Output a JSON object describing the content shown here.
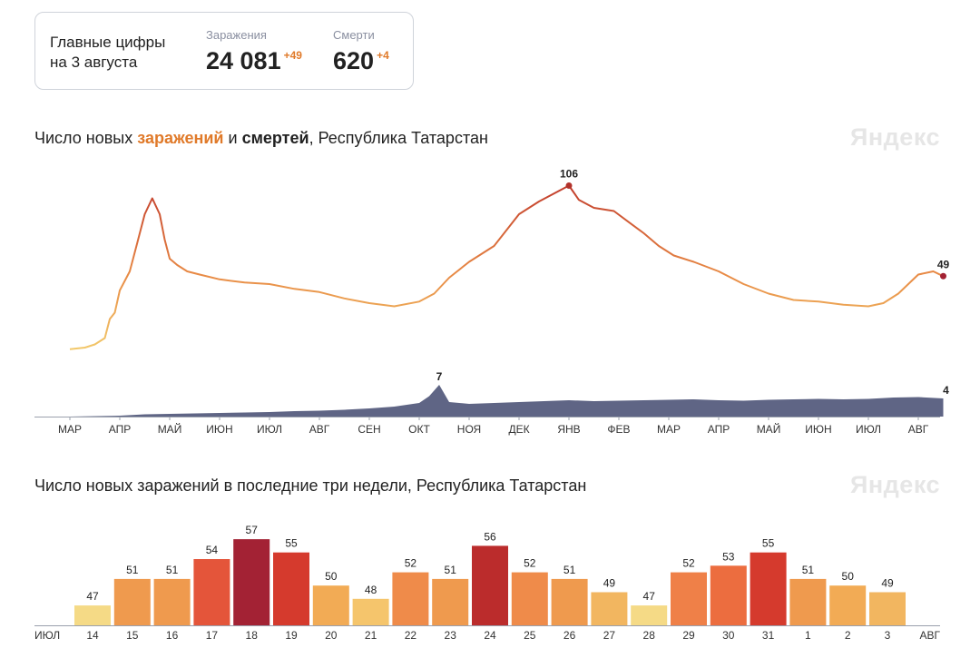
{
  "summary": {
    "heading": "Главные цифры на 3 августа",
    "cases_label": "Заражения",
    "cases_value": "24 081",
    "cases_delta": "+49",
    "deaths_label": "Смерти",
    "deaths_value": "620",
    "deaths_delta": "+4"
  },
  "chart1_title": {
    "prefix": "Число новых ",
    "infections": "заражений",
    "mid": " и ",
    "deaths": "смертей",
    "suffix": ", Республика Татарстан"
  },
  "chart2_title": "Число новых заражений в последние три недели, Республика Татарстан",
  "watermark": "Яндекс",
  "colors": {
    "accent": "#e07a2a",
    "deaths_area": "#5f6585",
    "line_low": "#f2c86a",
    "line_high": "#c0392b"
  },
  "chart_data": [
    {
      "type": "line",
      "title": "Число новых заражений и смертей, Республика Татарстан",
      "x_ticks": [
        "МАР",
        "АПР",
        "МАЙ",
        "ИЮН",
        "ИЮЛ",
        "АВГ",
        "СЕН",
        "ОКТ",
        "НОЯ",
        "ДЕК",
        "ЯНВ",
        "ФЕВ",
        "МАР",
        "АПР",
        "МАЙ",
        "ИЮН",
        "ИЮЛ",
        "АВГ"
      ],
      "series": [
        {
          "name": "заражений",
          "peak_label": "106",
          "last_label": "49",
          "points": [
            [
              0,
              3
            ],
            [
              0.3,
              4
            ],
            [
              0.5,
              6
            ],
            [
              0.7,
              10
            ],
            [
              0.8,
              22
            ],
            [
              0.9,
              26
            ],
            [
              1.0,
              40
            ],
            [
              1.2,
              52
            ],
            [
              1.35,
              70
            ],
            [
              1.5,
              88
            ],
            [
              1.65,
              98
            ],
            [
              1.8,
              88
            ],
            [
              1.9,
              72
            ],
            [
              2.0,
              60
            ],
            [
              2.15,
              56
            ],
            [
              2.35,
              52
            ],
            [
              2.6,
              50
            ],
            [
              3.0,
              47
            ],
            [
              3.5,
              45
            ],
            [
              4.0,
              44
            ],
            [
              4.5,
              41
            ],
            [
              5.0,
              39
            ],
            [
              5.5,
              35
            ],
            [
              6.0,
              32
            ],
            [
              6.5,
              30
            ],
            [
              7.0,
              33
            ],
            [
              7.3,
              38
            ],
            [
              7.6,
              48
            ],
            [
              8.0,
              58
            ],
            [
              8.5,
              68
            ],
            [
              8.8,
              80
            ],
            [
              9.0,
              88
            ],
            [
              9.4,
              96
            ],
            [
              9.7,
              101
            ],
            [
              10.0,
              106
            ],
            [
              10.2,
              97
            ],
            [
              10.5,
              92
            ],
            [
              10.9,
              90
            ],
            [
              11.2,
              83
            ],
            [
              11.5,
              76
            ],
            [
              11.8,
              68
            ],
            [
              12.1,
              62
            ],
            [
              12.5,
              58
            ],
            [
              13.0,
              52
            ],
            [
              13.5,
              44
            ],
            [
              14.0,
              38
            ],
            [
              14.5,
              34
            ],
            [
              15.0,
              33
            ],
            [
              15.5,
              31
            ],
            [
              16.0,
              30
            ],
            [
              16.3,
              32
            ],
            [
              16.6,
              38
            ],
            [
              16.8,
              44
            ],
            [
              17.0,
              50
            ],
            [
              17.3,
              52
            ],
            [
              17.5,
              49
            ]
          ]
        },
        {
          "name": "смертей",
          "peak_label": "7",
          "last_label": "4",
          "points": [
            [
              0,
              0
            ],
            [
              1.0,
              0.2
            ],
            [
              1.5,
              0.5
            ],
            [
              2.0,
              0.6
            ],
            [
              2.5,
              0.7
            ],
            [
              3.0,
              0.8
            ],
            [
              3.5,
              0.9
            ],
            [
              4.0,
              1.0
            ],
            [
              4.5,
              1.2
            ],
            [
              5.0,
              1.3
            ],
            [
              5.5,
              1.5
            ],
            [
              6.0,
              1.8
            ],
            [
              6.5,
              2.2
            ],
            [
              7.0,
              3.0
            ],
            [
              7.2,
              4.5
            ],
            [
              7.4,
              7
            ],
            [
              7.6,
              3.2
            ],
            [
              8.0,
              2.8
            ],
            [
              8.5,
              3.0
            ],
            [
              9.0,
              3.2
            ],
            [
              9.5,
              3.4
            ],
            [
              10.0,
              3.6
            ],
            [
              10.5,
              3.4
            ],
            [
              11.0,
              3.5
            ],
            [
              11.5,
              3.6
            ],
            [
              12.0,
              3.7
            ],
            [
              12.5,
              3.8
            ],
            [
              13.0,
              3.6
            ],
            [
              13.5,
              3.5
            ],
            [
              14.0,
              3.7
            ],
            [
              14.5,
              3.8
            ],
            [
              15.0,
              3.9
            ],
            [
              15.5,
              3.8
            ],
            [
              16.0,
              3.9
            ],
            [
              16.5,
              4.2
            ],
            [
              17.0,
              4.3
            ],
            [
              17.5,
              4
            ]
          ]
        }
      ]
    },
    {
      "type": "bar",
      "title": "Число новых заражений в последние три недели, Республика Татарстан",
      "start_month": "ИЮЛ",
      "end_month": "АВГ",
      "categories": [
        "14",
        "15",
        "16",
        "17",
        "18",
        "19",
        "20",
        "21",
        "22",
        "23",
        "24",
        "25",
        "26",
        "27",
        "28",
        "29",
        "30",
        "31",
        "1",
        "2",
        "3"
      ],
      "values": [
        47,
        51,
        51,
        54,
        57,
        55,
        50,
        48,
        52,
        51,
        56,
        52,
        51,
        49,
        47,
        52,
        53,
        55,
        51,
        50,
        49
      ],
      "colors": [
        "#f5da86",
        "#ef9a4e",
        "#ef9a4e",
        "#e4553a",
        "#a32234",
        "#d53a2d",
        "#f2ab55",
        "#f5c56c",
        "#ef8b4a",
        "#ef9a4e",
        "#bb2c2c",
        "#ef8b4a",
        "#ef9a4e",
        "#f2b660",
        "#f5da86",
        "#ef8048",
        "#ec6d3f",
        "#d53a2d",
        "#ef9a4e",
        "#f2ab55",
        "#f2b660"
      ],
      "highlight_categories": [
        "17",
        "18",
        "24",
        "25",
        "31",
        "1"
      ],
      "highlight_color": "#e0412b"
    }
  ]
}
